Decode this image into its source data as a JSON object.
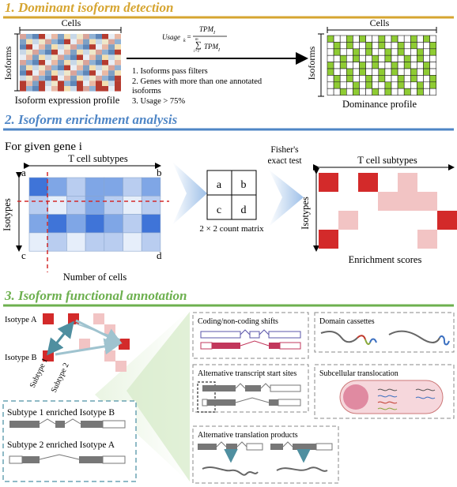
{
  "sections": [
    {
      "title": "1. Dominant isoform detection",
      "color": "#d6a531"
    },
    {
      "title": "2. Isoform enrichment analysis",
      "color": "#4f86c6"
    },
    {
      "title": "3. Isoform functional annotation",
      "color": "#6db04f"
    }
  ],
  "s1": {
    "cells_label": "Cells",
    "isoforms_label": "Isoforms",
    "left_caption": "Isoform expression profile",
    "right_caption": "Dominance profile",
    "formula_lhs": "Usage",
    "formula_sub": "k",
    "formula_num": "TPM",
    "formula_num_sub": "I",
    "formula_den": "TPM",
    "formula_den_sub": "I",
    "formula_sum_top": "m",
    "formula_sum_bottom": "i=1",
    "steps": [
      "1. Isoforms pass filters",
      "2. Genes with more than one annotated",
      "isoforms",
      "3. Usage > 75%"
    ]
  },
  "s2": {
    "intro": "For given gene i",
    "t_cell_subtypes": "T cell subtypes",
    "isotypes": "Isotypes",
    "number_of_cells": "Number of cells",
    "corners": [
      "a",
      "b",
      "c",
      "d"
    ],
    "matrix_cells": [
      "a",
      "b",
      "c",
      "d"
    ],
    "matrix_caption": "2 × 2 count matrix",
    "fisher": [
      "Fisher's",
      "exact test"
    ],
    "right_header": "T cell subtypes",
    "right_isotypes": "Isotypes",
    "enrichment_caption": "Enrichment scores"
  },
  "s3": {
    "isotype_a": "Isotype A",
    "isotype_b": "Isotype B",
    "subtype1": "Subtype 1",
    "subtype2": "Subtype 2",
    "enriched1": "Subtype 1 enriched Isotype B",
    "enriched2": "Subtype 2 enriched Isotype A",
    "panels": [
      "Coding/non-coding shifts",
      "Domain cassettes",
      "Alternative transcript start sites",
      "Subcellular translocation",
      "Alternative translation products"
    ]
  },
  "colors": {
    "dominant": "#8fcc33",
    "enriched_strong": "#d32a2a",
    "enriched_weak": "#f2c4c4",
    "blue_dark": "#3f74d8",
    "blue_light": "#dce7f7"
  }
}
